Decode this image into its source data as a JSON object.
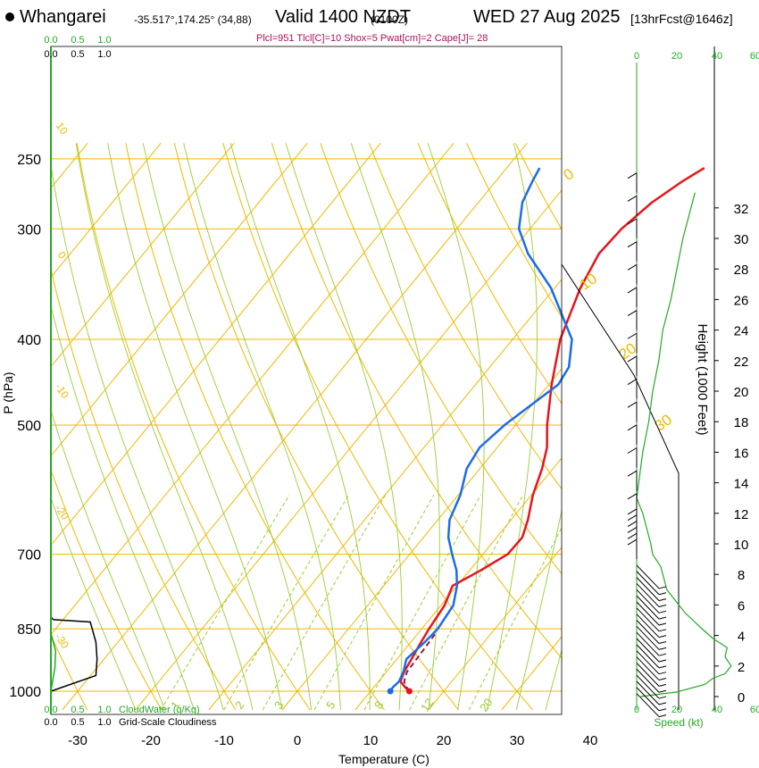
{
  "header": {
    "site": "Whangarei",
    "coords": "-35.517°,174.25° (34,88)",
    "valid": "Valid 1400 NZDT",
    "zulu": "(0100Z)",
    "date": "WED 27 Aug 2025",
    "forecast": "[13hrFcst@1646z]",
    "params": "Plcl=951 Tlcl[C]=10 Shox=5 Pwat[cm]=2 Cape[J]= 28"
  },
  "colors": {
    "temperature": "#e8141b",
    "dewpoint": "#1a6de8",
    "parcel": "#8b1a4a",
    "isotherm": "#f0b800",
    "dry_adiabat": "#f0b800",
    "moist_adiabat": "#9acd32",
    "mixing_ratio": "#9acd32",
    "cloud_water": "#22aa22",
    "wind_speed": "#22aa22",
    "cloudiness": "#000000"
  },
  "chart_data": {
    "type": "skew-t",
    "xlabel": "Temperature (C)",
    "ylabel": "P (hPa)",
    "y2label": "Height (1000 Feet)",
    "x_ticks": [
      "-30",
      "-20",
      "-10",
      "0",
      "10",
      "20",
      "30",
      "40"
    ],
    "p_ticks": [
      "250",
      "300",
      "400",
      "500",
      "700",
      "850",
      "1000"
    ],
    "height_ticks": [
      "0",
      "2",
      "4",
      "6",
      "8",
      "10",
      "12",
      "14",
      "16",
      "18",
      "20",
      "22",
      "24",
      "26",
      "28",
      "30",
      "32"
    ],
    "mixing_ratio_labels": [
      "1",
      "2",
      "3",
      "5",
      "8",
      "12",
      "20"
    ],
    "dry_adiabat_labels": [
      "-20",
      "-10",
      "0",
      "10",
      "20",
      "30"
    ],
    "moist_adiabat_labels": [
      "10",
      "0",
      "-10",
      "-20",
      "-30"
    ],
    "temperature_profile": [
      [
        1000,
        15.3
      ],
      [
        990,
        14.3
      ],
      [
        975,
        13.0
      ],
      [
        950,
        12.4
      ],
      [
        920,
        12.0
      ],
      [
        880,
        11.4
      ],
      [
        850,
        11.0
      ],
      [
        800,
        10.5
      ],
      [
        760,
        9.4
      ],
      [
        730,
        11.5
      ],
      [
        700,
        13.4
      ],
      [
        670,
        13.5
      ],
      [
        640,
        12.3
      ],
      [
        600,
        10.2
      ],
      [
        560,
        8.5
      ],
      [
        530,
        6.8
      ],
      [
        500,
        4.3
      ],
      [
        450,
        0.4
      ],
      [
        400,
        -3.5
      ],
      [
        350,
        -6.5
      ],
      [
        320,
        -7.8
      ],
      [
        300,
        -7.5
      ],
      [
        280,
        -6.3
      ],
      [
        265,
        -4.5
      ],
      [
        256,
        -3.0
      ]
    ],
    "dewpoint_profile": [
      [
        1000,
        12.7
      ],
      [
        990,
        12.6
      ],
      [
        975,
        12.8
      ],
      [
        950,
        12.3
      ],
      [
        920,
        11.3
      ],
      [
        880,
        11.9
      ],
      [
        850,
        12.2
      ],
      [
        800,
        11.7
      ],
      [
        760,
        10.0
      ],
      [
        730,
        8.2
      ],
      [
        700,
        5.8
      ],
      [
        670,
        3.4
      ],
      [
        640,
        1.6
      ],
      [
        600,
        0.3
      ],
      [
        560,
        -1.8
      ],
      [
        530,
        -2.4
      ],
      [
        500,
        -1.5
      ],
      [
        450,
        1.3
      ],
      [
        430,
        0.8
      ],
      [
        400,
        -1.9
      ],
      [
        350,
        -10.5
      ],
      [
        320,
        -17.5
      ],
      [
        300,
        -21.5
      ],
      [
        280,
        -24.0
      ],
      [
        265,
        -25.0
      ],
      [
        256,
        -25.5
      ]
    ],
    "parcel_profile": [
      [
        1000,
        15.3
      ],
      [
        990,
        14.5
      ],
      [
        975,
        13.5
      ],
      [
        951,
        12.8
      ],
      [
        900,
        12.6
      ],
      [
        860,
        12.4
      ]
    ],
    "cloud_water_label": "CloudWater (g/Kg)",
    "cloudiness_label": "Grid-Scale Cloudiness",
    "cloud_water_ticks": [
      "0.0",
      "0.5",
      "1.0"
    ],
    "cloudiness_ticks": [
      "0.0",
      "0.5",
      "1.0"
    ],
    "cloudiness_profile": [
      [
        1000,
        0.0
      ],
      [
        960,
        0.8
      ],
      [
        920,
        0.82
      ],
      [
        880,
        0.8
      ],
      [
        835,
        0.7
      ],
      [
        830,
        0.05
      ],
      [
        825,
        0.0
      ]
    ],
    "cloud_water_profile": [
      [
        1000,
        0.0
      ],
      [
        960,
        0.04
      ],
      [
        940,
        0.06
      ],
      [
        900,
        0.07
      ],
      [
        860,
        0.0
      ],
      [
        250,
        0.0
      ]
    ],
    "wind_speed_label": "Speed (kt)",
    "wind_speed_ticks": [
      "0",
      "20",
      "40",
      "60"
    ],
    "wind_speed_profile": [
      [
        0,
        2
      ],
      [
        0.3,
        20
      ],
      [
        0.8,
        34
      ],
      [
        1.2,
        38
      ],
      [
        1.5,
        44
      ],
      [
        2.0,
        47
      ],
      [
        2.6,
        44
      ],
      [
        3.2,
        45
      ],
      [
        3.8,
        38
      ],
      [
        4.5,
        32
      ],
      [
        5.5,
        24
      ],
      [
        7.0,
        15
      ],
      [
        8.5,
        12
      ],
      [
        9.3,
        8
      ],
      [
        10.0,
        7
      ],
      [
        11.0,
        5
      ],
      [
        12.0,
        3
      ],
      [
        13.0,
        0
      ],
      [
        14.0,
        1
      ],
      [
        16.0,
        3
      ],
      [
        18.0,
        6
      ],
      [
        20.0,
        8
      ],
      [
        22.0,
        11
      ],
      [
        24.0,
        13
      ],
      [
        26.0,
        17
      ],
      [
        28.0,
        20
      ],
      [
        30.0,
        23
      ],
      [
        32.0,
        27
      ],
      [
        33.0,
        29
      ]
    ],
    "wind_barb_heights_kft": [
      0.2,
      0.6,
      1.0,
      1.4,
      1.8,
      2.2,
      2.6,
      3.0,
      3.4,
      3.8,
      4.2,
      4.6,
      5.0,
      5.4,
      5.8,
      6.2,
      6.6,
      7.0,
      7.4,
      7.8,
      8.2,
      8.6,
      9.0,
      9.4,
      9.8,
      10.2,
      10.6,
      11.0,
      12.0,
      13.5,
      15.0,
      16.5,
      18.0,
      19.5,
      21.0,
      22.5,
      24.0,
      25.5,
      27.0,
      28.5,
      30.0,
      31.5,
      33.0
    ]
  }
}
